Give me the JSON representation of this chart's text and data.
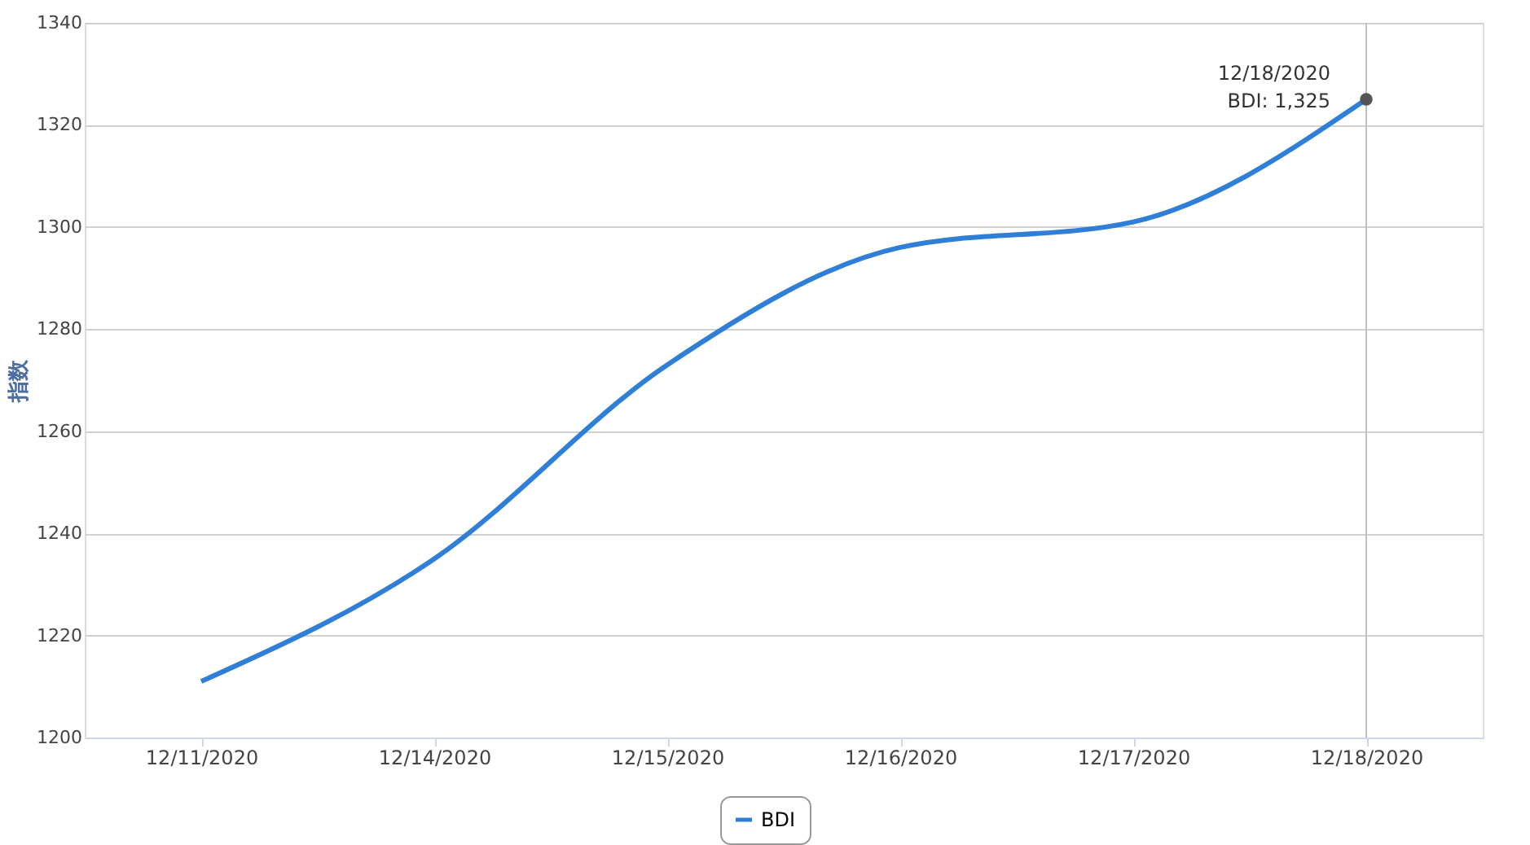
{
  "chart_data": {
    "type": "line",
    "ylabel": "指数",
    "categories": [
      "12/11/2020",
      "12/14/2020",
      "12/15/2020",
      "12/16/2020",
      "12/17/2020",
      "12/18/2020"
    ],
    "series": [
      {
        "name": "BDI",
        "color": "#2f7ed8",
        "values": [
          1211,
          1235,
          1273,
          1296,
          1301,
          1325
        ]
      }
    ],
    "ylim": [
      1200,
      1340
    ],
    "yticks": [
      1200,
      1220,
      1240,
      1260,
      1280,
      1300,
      1320,
      1340
    ],
    "grid": "y",
    "ref_lines": [
      {
        "axis": "x",
        "value": "12/18/2020",
        "color": "#c0c0c0"
      }
    ],
    "legend": "bottom",
    "marker": "none",
    "line_style": "solid",
    "annotations": [
      {
        "text": "12/18/2020\nBDI: 1,325",
        "x": "12/18/2020",
        "y": 1325
      }
    ]
  }
}
